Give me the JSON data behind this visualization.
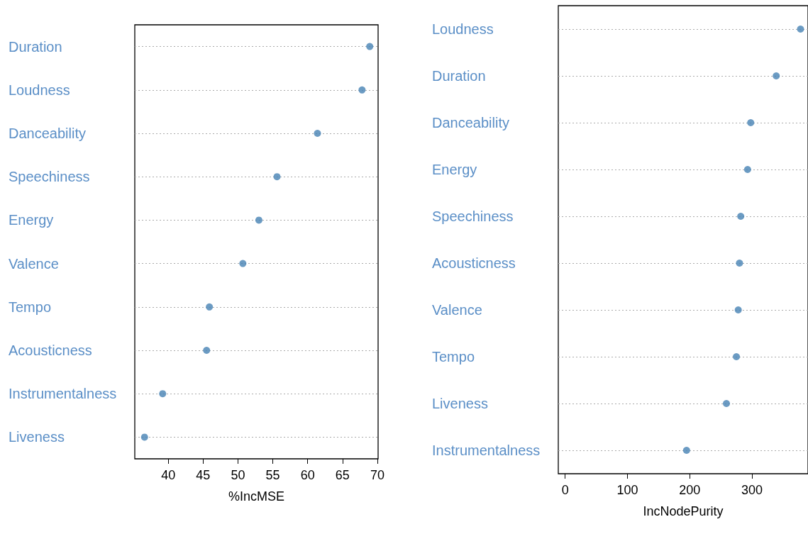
{
  "chart_data": [
    {
      "type": "scatter",
      "categories": [
        "Duration",
        "Loudness",
        "Danceability",
        "Speechiness",
        "Energy",
        "Valence",
        "Tempo",
        "Acousticness",
        "Instrumentalness",
        "Liveness"
      ],
      "orientation": "horizontal",
      "values": [
        68.9,
        67.8,
        61.4,
        55.6,
        53.0,
        50.7,
        45.9,
        45.5,
        39.2,
        36.6
      ],
      "color": "#4682b4",
      "xlabel": "%IncMSE",
      "xlim": [
        35.2,
        70.1
      ],
      "xticks": [
        40,
        45,
        50,
        55,
        60,
        65,
        70
      ],
      "grid": "y",
      "marker": "circle"
    },
    {
      "type": "scatter",
      "categories": [
        "Loudness",
        "Duration",
        "Danceability",
        "Energy",
        "Speechiness",
        "Acousticness",
        "Valence",
        "Tempo",
        "Liveness",
        "Instrumentalness"
      ],
      "orientation": "horizontal",
      "values": [
        378,
        339,
        298,
        293,
        282,
        280,
        278,
        275,
        259,
        195
      ],
      "color": "#4682b4",
      "xlabel": "IncNodePurity",
      "xlim": [
        -11,
        390
      ],
      "xticks": [
        0,
        100,
        200,
        300
      ],
      "grid": "y",
      "marker": "circle"
    }
  ]
}
